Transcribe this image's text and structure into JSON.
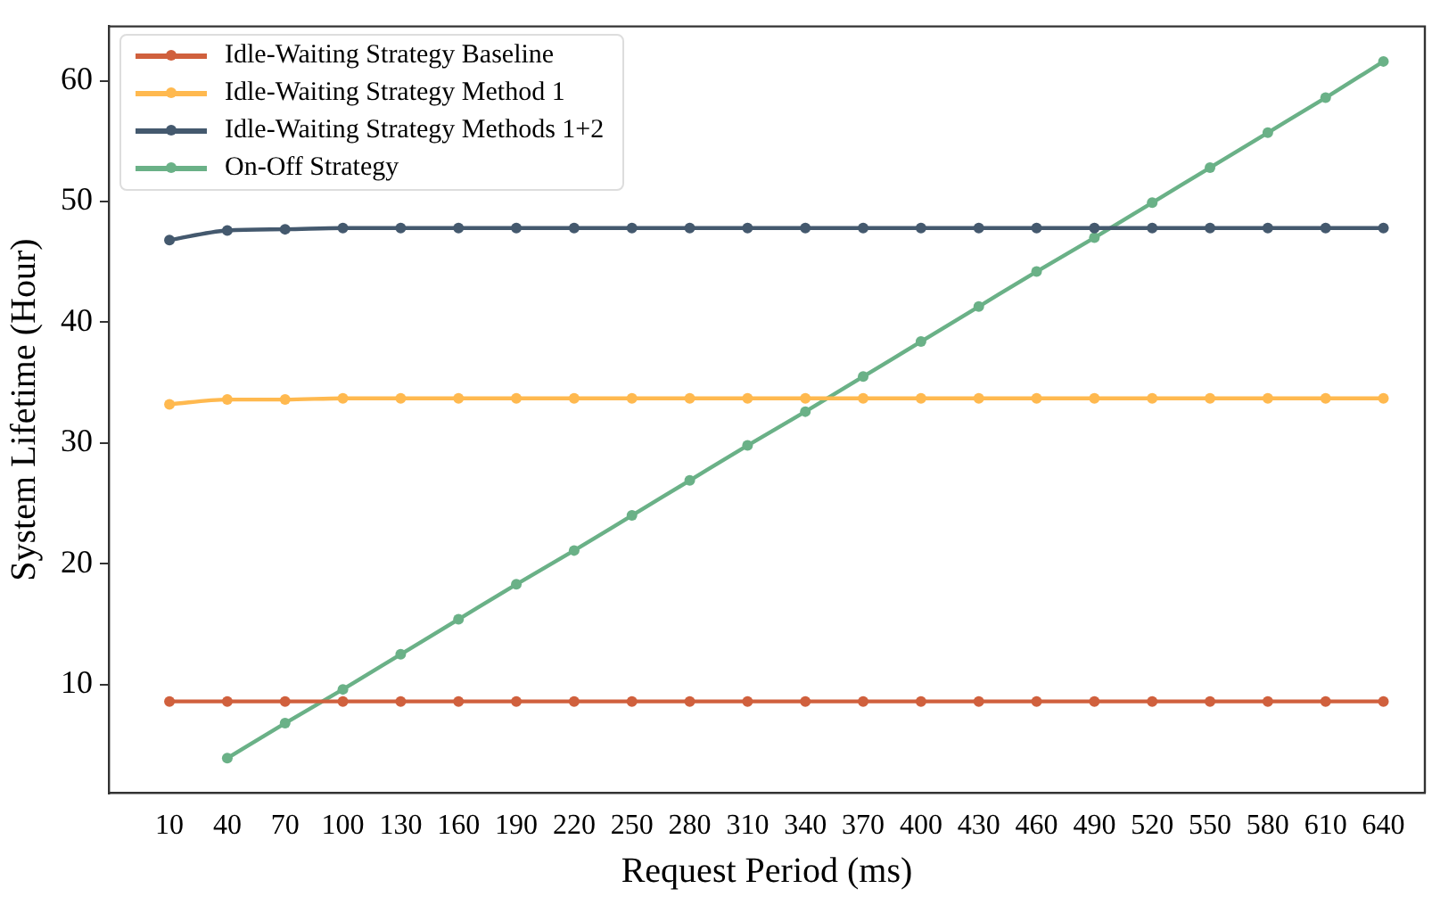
{
  "chart_data": {
    "type": "line",
    "xlabel": "Request Period (ms)",
    "ylabel": "System Lifetime (Hour)",
    "x": [
      10,
      40,
      70,
      100,
      130,
      160,
      190,
      220,
      250,
      280,
      310,
      340,
      370,
      400,
      430,
      460,
      490,
      520,
      550,
      580,
      610,
      640
    ],
    "xlim": [
      -21.5,
      661.5
    ],
    "xticks": [
      10,
      40,
      70,
      100,
      130,
      160,
      190,
      220,
      250,
      280,
      310,
      340,
      370,
      400,
      430,
      460,
      490,
      520,
      550,
      580,
      610,
      640
    ],
    "ylim": [
      1.0,
      64.5
    ],
    "yticks": [
      10,
      20,
      30,
      40,
      50,
      60
    ],
    "grid": false,
    "legend": "top left",
    "marker": "circle",
    "line_style": "solid",
    "series": [
      {
        "name": "Idle-Waiting Strategy Baseline",
        "color": "#d0603d",
        "values": [
          8.6,
          8.6,
          8.6,
          8.6,
          8.6,
          8.6,
          8.6,
          8.6,
          8.6,
          8.6,
          8.6,
          8.6,
          8.6,
          8.6,
          8.6,
          8.6,
          8.6,
          8.6,
          8.6,
          8.6,
          8.6,
          8.6
        ]
      },
      {
        "name": "Idle-Waiting Strategy Method 1",
        "color": "#ffb94f",
        "values": [
          33.2,
          33.6,
          33.6,
          33.7,
          33.7,
          33.7,
          33.7,
          33.7,
          33.7,
          33.7,
          33.7,
          33.7,
          33.7,
          33.7,
          33.7,
          33.7,
          33.7,
          33.7,
          33.7,
          33.7,
          33.7,
          33.7
        ]
      },
      {
        "name": "Idle-Waiting Strategy Methods 1+2",
        "color": "#44596e",
        "values": [
          46.8,
          47.6,
          47.7,
          47.8,
          47.8,
          47.8,
          47.8,
          47.8,
          47.8,
          47.8,
          47.8,
          47.8,
          47.8,
          47.8,
          47.8,
          47.8,
          47.8,
          47.8,
          47.8,
          47.8,
          47.8,
          47.8
        ]
      },
      {
        "name": "On-Off Strategy",
        "color": "#6ab187",
        "values": [
          null,
          3.9,
          6.8,
          9.6,
          12.5,
          15.4,
          18.3,
          21.1,
          24.0,
          26.9,
          29.8,
          32.6,
          35.5,
          38.4,
          41.3,
          44.2,
          47.0,
          49.9,
          52.8,
          55.7,
          58.6,
          61.6
        ]
      }
    ]
  }
}
